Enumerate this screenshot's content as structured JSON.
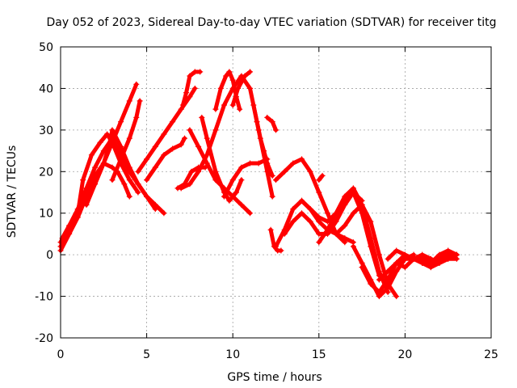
{
  "chart_data": {
    "type": "scatter",
    "title": "Day 052 of 2023, Sidereal Day-to-day VTEC variation (SDTVAR) for receiver titg",
    "xlabel": "GPS time / hours",
    "ylabel": "SDTVAR / TECUs",
    "xlim": [
      0,
      25
    ],
    "ylim": [
      -20,
      50
    ],
    "xticks": [
      0,
      5,
      10,
      15,
      20,
      25
    ],
    "yticks": [
      -20,
      -10,
      0,
      10,
      20,
      30,
      40,
      50
    ],
    "grid": true,
    "marker": "+",
    "color": "#ff0000",
    "series": [
      {
        "x": [
          0.0,
          0.5,
          1.0,
          1.5,
          2.0,
          2.5,
          3.0,
          3.3,
          3.7,
          4.0
        ],
        "y": [
          1,
          5,
          9,
          14,
          19,
          22,
          21,
          20,
          17,
          14
        ]
      },
      {
        "x": [
          0.0,
          0.5,
          1.0,
          1.5,
          2.0,
          2.5,
          3.0,
          3.5,
          4.0,
          4.5,
          5.0,
          5.5,
          6.0
        ],
        "y": [
          2,
          6,
          11,
          16,
          21,
          25,
          28,
          24,
          20,
          17,
          14,
          12,
          10
        ]
      },
      {
        "x": [
          0.0,
          0.5,
          1.0,
          1.3,
          1.8,
          2.3,
          2.7,
          3.0,
          3.5,
          4.0,
          4.5
        ],
        "y": [
          3,
          7,
          10,
          18,
          24,
          27,
          29,
          27,
          22,
          18,
          15
        ]
      },
      {
        "x": [
          0.1,
          0.5,
          1.0,
          1.5,
          2.0,
          2.5,
          2.8,
          3.0,
          3.5,
          4.0,
          4.5,
          5.0,
          5.5
        ],
        "y": [
          4,
          7,
          11,
          13,
          17,
          22,
          26,
          30,
          26,
          21,
          17,
          14,
          11
        ]
      },
      {
        "x": [
          1.5,
          2.0,
          2.5,
          3.0,
          3.5,
          4.0,
          4.4
        ],
        "y": [
          12,
          17,
          22,
          27,
          32,
          37,
          41
        ]
      },
      {
        "x": [
          3.0,
          3.5,
          4.0,
          4.4,
          4.6
        ],
        "y": [
          18,
          23,
          28,
          33,
          37
        ]
      },
      {
        "x": [
          4.5,
          5.0,
          5.5,
          6.0,
          6.5,
          7.0,
          7.5,
          7.8
        ],
        "y": [
          20,
          23,
          26,
          29,
          32,
          35,
          38,
          40
        ]
      },
      {
        "x": [
          5.0,
          5.5,
          6.0,
          6.5,
          7.0,
          7.2
        ],
        "y": [
          18,
          21,
          24,
          25.5,
          26.5,
          28
        ]
      },
      {
        "x": [
          7.1,
          7.3,
          7.5,
          7.8,
          8.1
        ],
        "y": [
          36,
          39,
          43,
          44,
          44
        ]
      },
      {
        "x": [
          7.5,
          8.0,
          8.5,
          9.0,
          9.5,
          10.0,
          10.5,
          11.0
        ],
        "y": [
          30,
          26,
          22,
          18,
          16,
          14,
          12,
          10
        ]
      },
      {
        "x": [
          8.2,
          8.5,
          9.0,
          9.5,
          9.8,
          10.2,
          10.5
        ],
        "y": [
          33,
          28,
          20,
          15,
          13,
          15,
          18
        ]
      },
      {
        "x": [
          9.0,
          9.3,
          9.6,
          9.8,
          10.0,
          10.2,
          10.4
        ],
        "y": [
          35,
          40,
          43,
          44,
          42,
          38,
          35
        ]
      },
      {
        "x": [
          7.0,
          7.5,
          8.0,
          8.5,
          9.0,
          9.5,
          10.0,
          10.5,
          11.0,
          11.5,
          12.0,
          12.3
        ],
        "y": [
          16,
          17,
          20,
          24,
          30,
          36,
          40,
          43,
          40,
          30,
          20,
          14
        ]
      },
      {
        "x": [
          10.0,
          10.3,
          10.7,
          11.0
        ],
        "y": [
          36,
          40,
          43,
          44
        ]
      },
      {
        "x": [
          6.8,
          7.2,
          7.6,
          8.0,
          8.4
        ],
        "y": [
          16,
          17,
          20,
          21,
          21
        ]
      },
      {
        "x": [
          9.5,
          10.0,
          10.5,
          11.0,
          11.5,
          12.0
        ],
        "y": [
          14,
          18,
          21,
          22,
          22,
          23
        ]
      },
      {
        "x": [
          11.2,
          11.4,
          11.6,
          11.8,
          12.0,
          12.3
        ],
        "y": [
          36,
          32,
          28,
          25,
          22,
          19
        ]
      },
      {
        "x": [
          12.0,
          12.3,
          12.5
        ],
        "y": [
          33,
          32,
          30
        ]
      },
      {
        "x": [
          12.2,
          12.4,
          12.6,
          12.8
        ],
        "y": [
          6,
          2,
          1,
          1
        ]
      },
      {
        "x": [
          12.5,
          13.0,
          13.5,
          14.0,
          14.5,
          15.0,
          15.5,
          16.0,
          16.5
        ],
        "y": [
          18,
          20,
          22,
          23,
          20,
          15,
          10,
          5,
          3
        ]
      },
      {
        "x": [
          12.5,
          13.0,
          13.5,
          14.0,
          14.5,
          15.0,
          15.5,
          16.0,
          16.5,
          17.0
        ],
        "y": [
          2,
          6,
          11,
          13,
          11,
          8,
          6,
          5,
          4,
          3
        ]
      },
      {
        "x": [
          13.0,
          13.5,
          14.0,
          14.5,
          15.0,
          15.5,
          16.0,
          16.5,
          17.0,
          17.5
        ],
        "y": [
          5,
          8,
          10,
          8,
          5,
          5,
          8,
          12,
          15,
          13
        ]
      },
      {
        "x": [
          14.0,
          14.5,
          15.0,
          15.5,
          16.0,
          16.5,
          17.0,
          17.5,
          18.0,
          18.5
        ],
        "y": [
          13,
          11,
          9,
          8,
          10,
          13,
          15,
          10,
          2,
          -5
        ]
      },
      {
        "x": [
          15.0,
          15.5,
          16.0,
          16.5,
          17.0,
          17.5,
          18.0,
          18.5,
          19.0
        ],
        "y": [
          3,
          6,
          10,
          14,
          16,
          12,
          4,
          -4,
          -9
        ]
      },
      {
        "x": [
          16.0,
          16.5,
          17.0,
          17.5,
          18.0,
          18.5,
          19.0,
          19.5
        ],
        "y": [
          5,
          7,
          10,
          12,
          8,
          0,
          -7,
          -10
        ]
      },
      {
        "x": [
          17.0,
          17.5,
          18.0,
          18.5,
          19.0,
          19.5,
          20.0,
          20.5
        ],
        "y": [
          2,
          -2,
          -6,
          -10,
          -8,
          -4,
          -1,
          0
        ]
      },
      {
        "x": [
          17.5,
          18.0,
          18.5,
          19.0,
          19.5,
          20.0
        ],
        "y": [
          -3,
          -7,
          -9,
          -6,
          -2,
          0
        ]
      },
      {
        "x": [
          18.5,
          19.0,
          19.5,
          20.0,
          20.5,
          21.0,
          21.5,
          22.0,
          22.5,
          23.0
        ],
        "y": [
          -6,
          -4,
          -2,
          -1,
          -1,
          -2,
          -3,
          -2,
          -1,
          -1
        ]
      },
      {
        "x": [
          19.0,
          19.5,
          20.0,
          20.5,
          21.0,
          21.5,
          22.0,
          22.5,
          23.0
        ],
        "y": [
          -1,
          1,
          0,
          -1,
          -2,
          -3,
          -1,
          0,
          0
        ]
      },
      {
        "x": [
          19.5,
          20.0,
          20.5,
          21.0,
          21.5,
          22.0,
          22.5,
          23.0
        ],
        "y": [
          -2,
          -3,
          -1,
          0,
          -1,
          -2,
          -1,
          0
        ]
      },
      {
        "x": [
          20.5,
          21.0,
          21.5,
          22.0,
          22.5,
          23.0
        ],
        "y": [
          -1,
          -1,
          -2,
          0,
          1,
          0
        ]
      },
      {
        "x": [
          15.0,
          15.2
        ],
        "y": [
          18,
          19
        ]
      }
    ]
  }
}
